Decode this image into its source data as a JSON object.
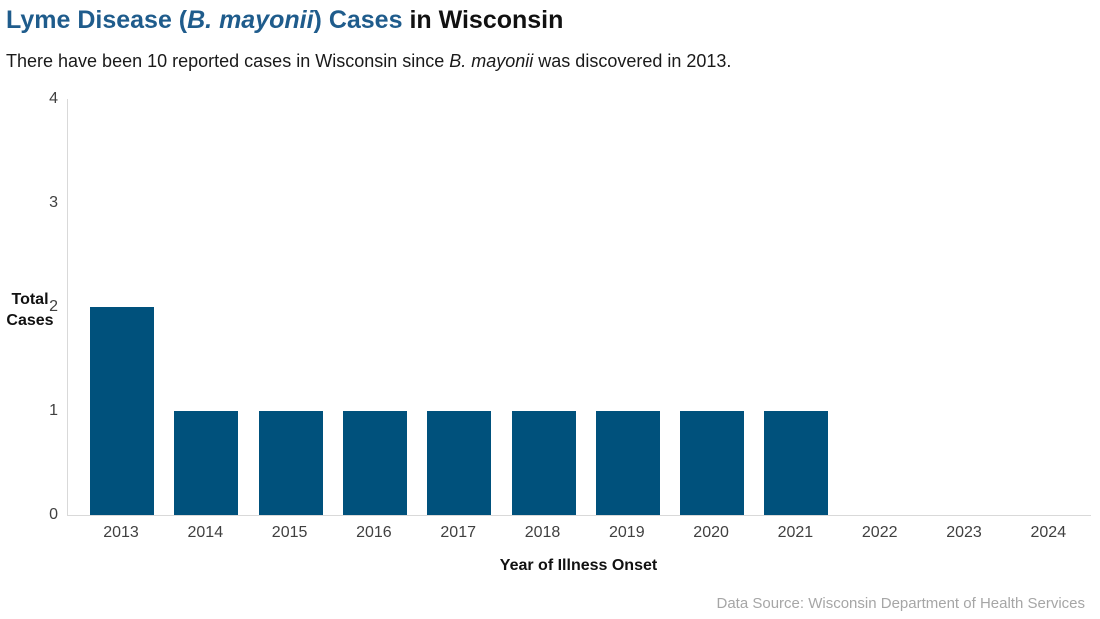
{
  "header": {
    "title_segments": [
      {
        "text": "Lyme Disease (",
        "style": "blue"
      },
      {
        "text": "B. mayonii",
        "style": "blue_italic"
      },
      {
        "text": ") Cases",
        "style": "blue"
      },
      {
        "text": " in Wisconsin",
        "style": "dark"
      }
    ],
    "subtitle_segments": [
      {
        "text": "There have been 10 reported cases in Wisconsin since ",
        "style": "normal"
      },
      {
        "text": "B. mayonii",
        "style": "italic"
      },
      {
        "text": " was discovered in 2013.",
        "style": "normal"
      }
    ]
  },
  "chart_data": {
    "type": "bar",
    "categories": [
      "2013",
      "2014",
      "2015",
      "2016",
      "2017",
      "2018",
      "2019",
      "2020",
      "2021",
      "2022",
      "2023",
      "2024"
    ],
    "values": [
      2,
      1,
      1,
      1,
      1,
      1,
      1,
      1,
      1,
      0,
      0,
      0
    ],
    "title": "Lyme Disease (B. mayonii) Cases in Wisconsin",
    "subtitle": "There have been 10 reported cases in Wisconsin since B. mayonii was discovered in 2013.",
    "xlabel": "Year of Illness Onset",
    "ylabel": "Total Cases",
    "ylabel_lines": [
      "Total",
      "Cases"
    ],
    "ylim": [
      0,
      4
    ],
    "yticks": [
      0,
      1,
      2,
      3,
      4
    ],
    "grid": false,
    "legend": false,
    "bar_color": "#00517C",
    "total_cases_note": "10 reported cases since 2013"
  },
  "footer": {
    "data_source": "Data Source: Wisconsin Department of Health Services"
  },
  "colors": {
    "title_blue": "#1F5C8C",
    "bar": "#00517C",
    "axis_line": "#D9D9D9",
    "tick_label": "#404040",
    "footer_text": "#A6A6A6",
    "text_dark": "#111111"
  }
}
